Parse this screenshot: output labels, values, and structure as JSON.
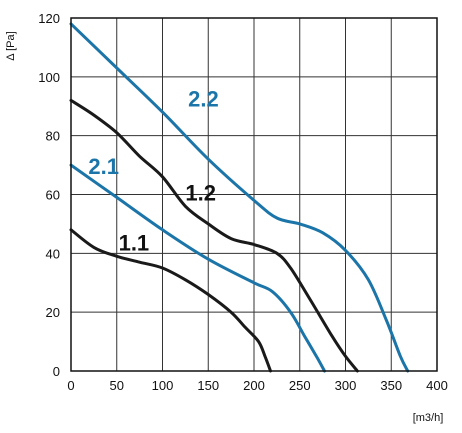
{
  "chart_data": {
    "type": "line",
    "xlabel": "[m3/h]",
    "ylabel": "Δ [Pa]",
    "xlim": [
      0,
      400
    ],
    "ylim": [
      0,
      120
    ],
    "x_ticks": [
      "0",
      "50",
      "100",
      "150",
      "200",
      "250",
      "300",
      "350",
      "400"
    ],
    "y_ticks": [
      "0",
      "20",
      "40",
      "60",
      "80",
      "100",
      "120"
    ],
    "grid": true,
    "series": [
      {
        "name": "2.2",
        "color": "#1c75a8",
        "points": [
          [
            0,
            118
          ],
          [
            50,
            103
          ],
          [
            100,
            88
          ],
          [
            150,
            72
          ],
          [
            200,
            58
          ],
          [
            225,
            52
          ],
          [
            250,
            50
          ],
          [
            275,
            47
          ],
          [
            300,
            41
          ],
          [
            325,
            31
          ],
          [
            345,
            17
          ],
          [
            360,
            5
          ],
          [
            368,
            0
          ]
        ]
      },
      {
        "name": "2.1",
        "color": "#1c75a8",
        "points": [
          [
            0,
            70
          ],
          [
            50,
            59
          ],
          [
            100,
            48
          ],
          [
            150,
            38
          ],
          [
            200,
            30
          ],
          [
            220,
            27
          ],
          [
            240,
            20
          ],
          [
            255,
            12
          ],
          [
            270,
            4
          ],
          [
            277,
            0
          ]
        ]
      },
      {
        "name": "1.2",
        "color": "#1a1a1a",
        "points": [
          [
            0,
            92
          ],
          [
            25,
            87
          ],
          [
            50,
            81
          ],
          [
            75,
            73
          ],
          [
            100,
            66
          ],
          [
            125,
            56
          ],
          [
            150,
            50
          ],
          [
            175,
            45
          ],
          [
            200,
            43
          ],
          [
            225,
            40
          ],
          [
            240,
            35
          ],
          [
            260,
            25
          ],
          [
            285,
            12
          ],
          [
            300,
            5
          ],
          [
            313,
            0
          ]
        ]
      },
      {
        "name": "1.1",
        "color": "#1a1a1a",
        "points": [
          [
            0,
            48
          ],
          [
            25,
            42
          ],
          [
            50,
            39
          ],
          [
            75,
            37
          ],
          [
            100,
            35
          ],
          [
            125,
            31
          ],
          [
            150,
            26
          ],
          [
            175,
            20
          ],
          [
            190,
            15
          ],
          [
            205,
            10
          ],
          [
            212,
            5
          ],
          [
            218,
            0
          ]
        ]
      }
    ],
    "curve_labels": [
      {
        "text": "2.2",
        "x": 128,
        "y": 90,
        "color": "#1c75a8"
      },
      {
        "text": "2.1",
        "x": 19,
        "y": 67,
        "color": "#1c75a8"
      },
      {
        "text": "1.2",
        "x": 125,
        "y": 58,
        "color": "#111111"
      },
      {
        "text": "1.1",
        "x": 52,
        "y": 41,
        "color": "#111111"
      }
    ]
  }
}
